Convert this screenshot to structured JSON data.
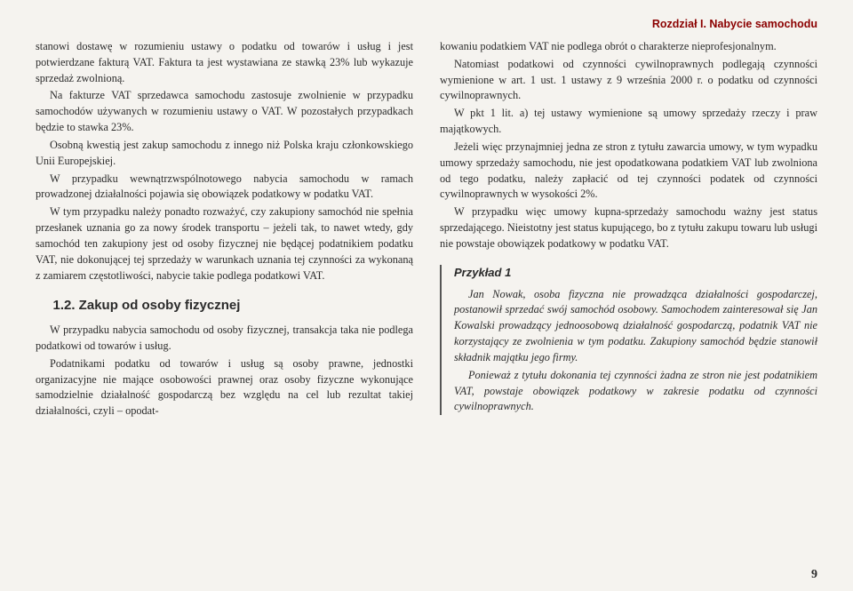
{
  "chapter_header": "Rozdział I. Nabycie samochodu",
  "left": {
    "p1": "stanowi dostawę w rozumieniu ustawy o podatku od towarów i usług i jest potwierdzane fakturą VAT. Faktura ta jest wystawiana ze stawką 23% lub wykazuje sprzedaż zwolnioną.",
    "p2": "Na fakturze VAT sprzedawca samochodu zastosuje zwolnienie w przypadku samochodów używanych w rozumieniu ustawy o VAT. W pozostałych przypadkach będzie to stawka 23%.",
    "p3": "Osobną kwestią jest zakup samochodu z innego niż Polska kraju członkowskiego Unii Europejskiej.",
    "p4": "W przypadku wewnątrzwspólnotowego nabycia samochodu w ramach prowadzonej działalności pojawia się obowiązek podatkowy w podatku VAT.",
    "p5": "W tym przypadku należy ponadto rozważyć, czy zakupiony samochód nie spełnia przesłanek uznania go za nowy środek transportu – jeżeli tak, to nawet wtedy, gdy samochód ten zakupiony jest od osoby fizycznej nie będącej podatnikiem podatku VAT, nie dokonującej tej sprzedaży w warunkach uznania tej czynności za wykonaną z zamiarem częstotliwości, nabycie takie podlega podatkowi VAT.",
    "h1": "1.2. Zakup od osoby fizycznej",
    "p6": "W przypadku nabycia samochodu od osoby fizycznej, transakcja taka nie podlega podatkowi od towarów i usług.",
    "p7": "Podatnikami podatku od towarów i usług są osoby prawne, jednostki organizacyjne nie mające osobowości prawnej oraz osoby fizyczne wykonujące samodzielnie działalność gospodarczą bez względu na cel lub rezultat takiej działalności, czyli – opodat-"
  },
  "right": {
    "p1": "kowaniu podatkiem VAT nie podlega obrót o charakterze nieprofesjonalnym.",
    "p2": "Natomiast podatkowi od czynności cywilnoprawnych podlegają czynności wymienione w art. 1 ust. 1 ustawy z 9 września 2000 r. o podatku od czynności cywilnoprawnych.",
    "p3": "W pkt 1 lit. a) tej ustawy wymienione są umowy sprzedaży rzeczy i praw majątkowych.",
    "p4": "Jeżeli więc przynajmniej jedna ze stron z tytułu zawarcia umowy, w tym wypadku umowy sprzedaży samochodu, nie jest opodatkowana podatkiem VAT lub zwolniona od tego podatku, należy zapłacić od tej czynności podatek od czynności cywilnoprawnych w wysokości 2%.",
    "p5": "W przypadku więc umowy kupna-sprzedaży samochodu ważny jest status sprzedającego. Nieistotny jest status kupującego, bo z tytułu zakupu towaru lub usługi nie powstaje obowiązek podatkowy w podatku VAT.",
    "example_title": "Przykład 1",
    "e1": "Jan Nowak, osoba fizyczna nie prowadząca działalności gospodarczej, postanowił sprzedać swój samochód osobowy. Samochodem zainteresował się Jan Kowalski prowadzący jednoosobową działalność gospodarczą, podatnik VAT nie korzystający ze zwolnienia w tym podatku. Zakupiony samochód będzie stanowił składnik majątku jego firmy.",
    "e2": "Ponieważ z tytułu dokonania tej czynności żadna ze stron nie jest podatnikiem VAT, powstaje obowiązek podatkowy w zakresie podatku od czynności cywilnoprawnych."
  },
  "page_number": "9"
}
